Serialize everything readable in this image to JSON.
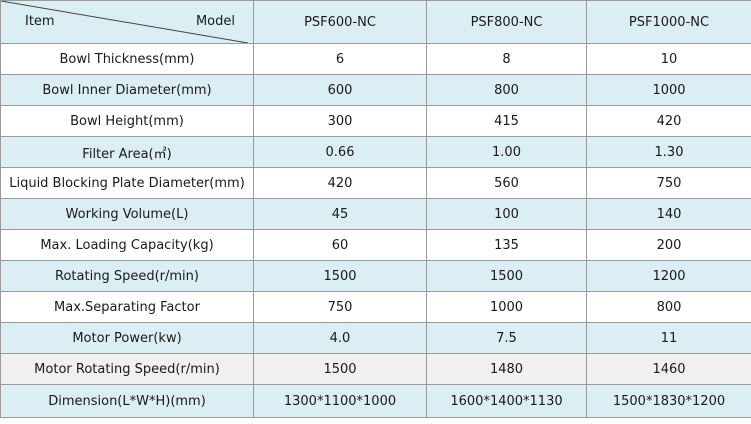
{
  "table": {
    "corner": {
      "item_label": "Item",
      "model_label": "Model"
    },
    "models": [
      "PSF600-NC",
      "PSF800-NC",
      "PSF1000-NC"
    ],
    "rows": [
      {
        "label": "Bowl Thickness(mm)",
        "values": [
          "6",
          "8",
          "10"
        ]
      },
      {
        "label": "Bowl Inner Diameter(mm)",
        "values": [
          "600",
          "800",
          "1000"
        ]
      },
      {
        "label": "Bowl Height(mm)",
        "values": [
          "300",
          "415",
          "420"
        ]
      },
      {
        "label": "Filter Area(㎡)",
        "values": [
          "0.66",
          "1.00",
          "1.30"
        ]
      },
      {
        "label": "Liquid Blocking Plate Diameter(mm)",
        "values": [
          "420",
          "560",
          "750"
        ]
      },
      {
        "label": "Working Volume(L)",
        "values": [
          "45",
          "100",
          "140"
        ]
      },
      {
        "label": "Max. Loading Capacity(kg)",
        "values": [
          "60",
          "135",
          "200"
        ]
      },
      {
        "label": "Rotating Speed(r/min)",
        "values": [
          "1500",
          "1500",
          "1200"
        ]
      },
      {
        "label": "Max.Separating Factor",
        "values": [
          "750",
          "1000",
          "800"
        ]
      },
      {
        "label": "Motor Power(kw)",
        "values": [
          "4.0",
          "7.5",
          "11"
        ]
      },
      {
        "label": "Motor Rotating Speed(r/min)",
        "values": [
          "1500",
          "1480",
          "1460"
        ]
      },
      {
        "label": "Dimension(L*W*H)(mm)",
        "values": [
          "1300*1100*1000",
          "1600*1400*1130",
          "1500*1830*1200"
        ]
      }
    ],
    "colors": {
      "header_fill": "#dbeef4",
      "stripe_fill": "#dbeef4",
      "grey_fill": "#f0f0f0",
      "border": "#9a9a9a",
      "text": "#1a1a1a"
    }
  }
}
